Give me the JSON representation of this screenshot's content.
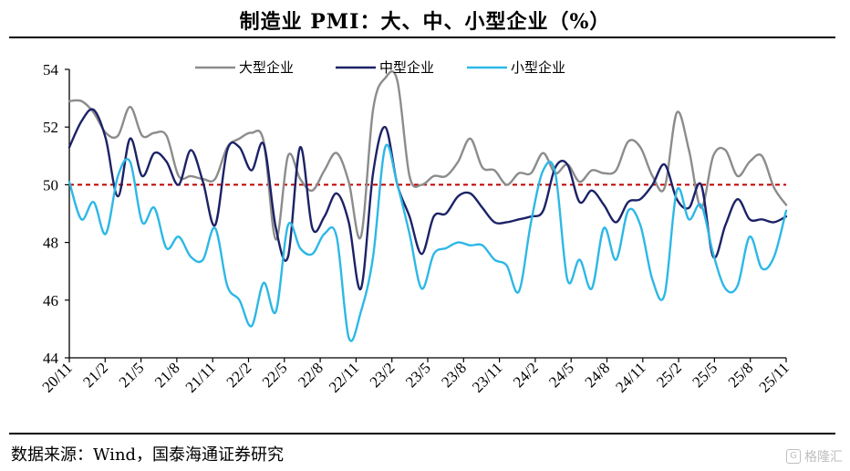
{
  "title": "制造业 PMI：大、中、小型企业（%）",
  "source": "数据来源：Wind，国泰海通证券研究",
  "watermark": "格隆汇",
  "chart_data": {
    "type": "line",
    "ylim": [
      44,
      54
    ],
    "yticks": [
      44,
      46,
      48,
      50,
      52,
      54
    ],
    "x_tick_labels": [
      "20/11",
      "21/2",
      "21/5",
      "21/8",
      "21/11",
      "22/2",
      "22/5",
      "22/8",
      "22/11",
      "23/2",
      "23/5",
      "23/8",
      "23/11",
      "24/2",
      "24/5",
      "24/8",
      "24/11",
      "25/2",
      "25/5",
      "25/8",
      "25/11"
    ],
    "x_range": [
      "2020-11",
      "2025-11"
    ],
    "reference_line": {
      "value": 50,
      "color": "#c00000",
      "style": "dashed"
    },
    "legend_position": "top",
    "series": [
      {
        "name": "大型企业",
        "color": "#8c8c8c",
        "values": [
          52.9,
          52.9,
          52.5,
          51.8,
          51.7,
          52.7,
          51.7,
          51.8,
          51.7,
          50.3,
          50.3,
          50.2,
          50.2,
          51.3,
          51.6,
          51.8,
          51.5,
          48.1,
          51.0,
          50.2,
          49.8,
          50.5,
          51.1,
          50.1,
          48.2,
          52.6,
          53.7,
          53.6,
          50.3,
          50.0,
          50.3,
          50.3,
          50.8,
          51.6,
          50.6,
          50.5,
          50.0,
          50.4,
          50.4,
          51.1,
          50.4,
          50.7,
          50.1,
          50.5,
          50.4,
          50.5,
          51.5,
          51.3,
          50.3,
          49.9,
          52.5,
          51.2,
          49.2,
          51.0,
          51.2,
          50.3,
          50.8,
          51.0,
          49.9,
          49.3
        ]
      },
      {
        "name": "中型企业",
        "color": "#1c2266",
        "values": [
          51.3,
          52.2,
          52.6,
          51.6,
          49.6,
          51.6,
          50.3,
          51.1,
          50.8,
          50.0,
          51.2,
          50.1,
          48.6,
          51.2,
          51.3,
          50.5,
          51.4,
          48.5,
          47.5,
          51.3,
          48.5,
          48.9,
          49.7,
          48.7,
          46.4,
          50.4,
          52.0,
          50.0,
          48.9,
          47.6,
          48.9,
          49.0,
          49.6,
          49.7,
          49.2,
          48.7,
          48.7,
          48.8,
          48.9,
          49.1,
          50.6,
          50.7,
          49.4,
          49.8,
          49.3,
          48.7,
          49.4,
          49.5,
          50.0,
          50.7,
          49.5,
          49.2,
          50.0,
          47.5,
          48.6,
          49.5,
          48.8,
          48.8,
          48.7,
          48.9
        ]
      },
      {
        "name": "小型企业",
        "color": "#2db8e6",
        "values": [
          50.1,
          48.8,
          49.4,
          48.3,
          50.3,
          50.8,
          48.7,
          49.2,
          47.8,
          48.2,
          47.5,
          47.4,
          48.5,
          46.5,
          46.0,
          45.1,
          46.6,
          45.6,
          48.6,
          47.8,
          47.6,
          48.3,
          48.2,
          44.7,
          45.6,
          47.5,
          51.3,
          50.0,
          48.3,
          46.4,
          47.6,
          47.8,
          48.0,
          47.9,
          47.9,
          47.4,
          47.2,
          46.3,
          48.7,
          50.5,
          50.4,
          46.7,
          47.4,
          46.4,
          48.5,
          47.4,
          49.1,
          48.6,
          46.7,
          46.2,
          49.8,
          48.8,
          49.3,
          47.6,
          46.4,
          46.5,
          48.2,
          47.1,
          47.5,
          49.1
        ]
      }
    ]
  }
}
